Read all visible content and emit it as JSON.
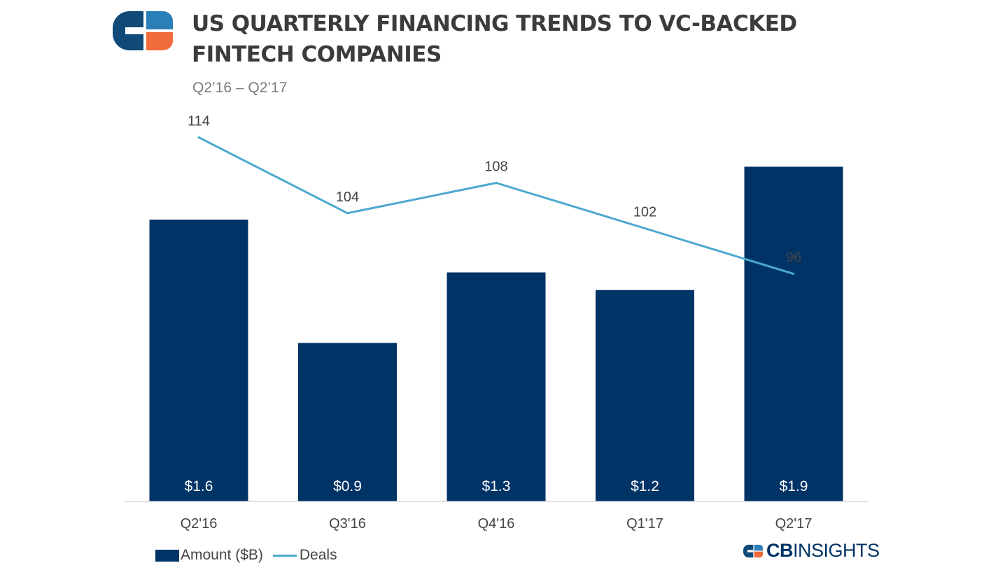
{
  "title": "US QUARTERLY FINANCING TRENDS TO VC-BACKED FINTECH COMPANIES",
  "subtitle": "Q2’16 – Q2’17",
  "brand": {
    "bold": "CB",
    "rest": "INSIGHTS"
  },
  "colors": {
    "bar": "#003366",
    "line": "#4da9cf",
    "logo_blue": "#0f4a78",
    "logo_light_blue": "#2b7fb8",
    "logo_orange": "#f26b3a"
  },
  "chart_data": {
    "type": "bar",
    "categories": [
      "Q2'16",
      "Q3'16",
      "Q4'16",
      "Q1'17",
      "Q2'17"
    ],
    "series": [
      {
        "name": "Amount ($B)",
        "type": "bar",
        "values": [
          1.6,
          0.9,
          1.3,
          1.2,
          1.9
        ],
        "labels": [
          "$1.6",
          "$0.9",
          "$1.3",
          "$1.2",
          "$1.9"
        ]
      },
      {
        "name": "Deals",
        "type": "line",
        "values": [
          114,
          104,
          108,
          102,
          96
        ],
        "labels": [
          "114",
          "104",
          "108",
          "102",
          "96"
        ]
      }
    ],
    "legend": [
      "Amount ($B)",
      "Deals"
    ],
    "legend_position": "bottom-left",
    "grid": false,
    "ylim_amount": [
      0,
      2.1
    ],
    "ylim_deals": [
      66,
      118
    ]
  }
}
